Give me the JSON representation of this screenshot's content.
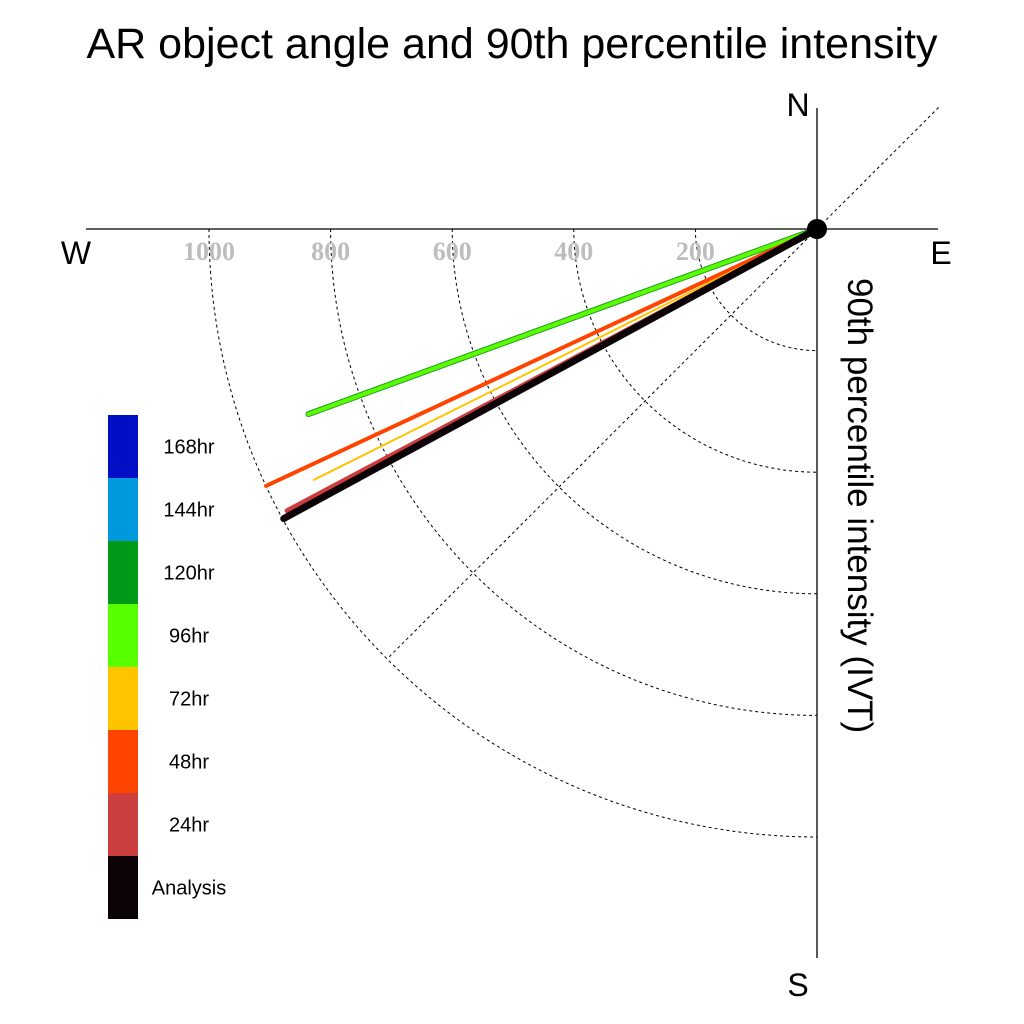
{
  "chart_data": {
    "type": "polar-vector",
    "title": "AR object angle and 90th percentile intensity",
    "radial_label": "90th percentile intensity (IVT)",
    "compass": {
      "north": "N",
      "south": "S",
      "east": "E",
      "west": "W"
    },
    "radial_ticks": [
      200,
      400,
      600,
      800,
      1000
    ],
    "radial_tick_labels": [
      "200",
      "400",
      "600",
      "800",
      "1000"
    ],
    "rlim": [
      0,
      1000
    ],
    "grid": true,
    "legend_position": "left",
    "angle_convention": "degrees clockwise from North",
    "series": [
      {
        "name": "Analysis",
        "color": "#0b0306",
        "angle": 241.5,
        "intensity": 998
      },
      {
        "name": "24hr",
        "color": "#cc3d3d",
        "angle": 242.0,
        "intensity": 987
      },
      {
        "name": "48hr",
        "color": "#ff4400",
        "angle": 245.0,
        "intensity": 1000
      },
      {
        "name": "72hr",
        "color": "#ffc400",
        "angle": 243.5,
        "intensity": 925
      },
      {
        "name": "96hr",
        "color": "#58ff00",
        "angle": 250.0,
        "intensity": 890
      }
    ],
    "legend": [
      {
        "label": "168hr",
        "color": "#000fc4"
      },
      {
        "label": "144hr",
        "color": "#0099dd"
      },
      {
        "label": "120hr",
        "color": "#009a18"
      },
      {
        "label": "96hr",
        "color": "#58ff00"
      },
      {
        "label": "72hr",
        "color": "#ffc400"
      },
      {
        "label": "48hr",
        "color": "#ff4400"
      },
      {
        "label": "24hr",
        "color": "#cc3d3d"
      },
      {
        "label": "Analysis",
        "color": "#0b0306"
      }
    ]
  }
}
